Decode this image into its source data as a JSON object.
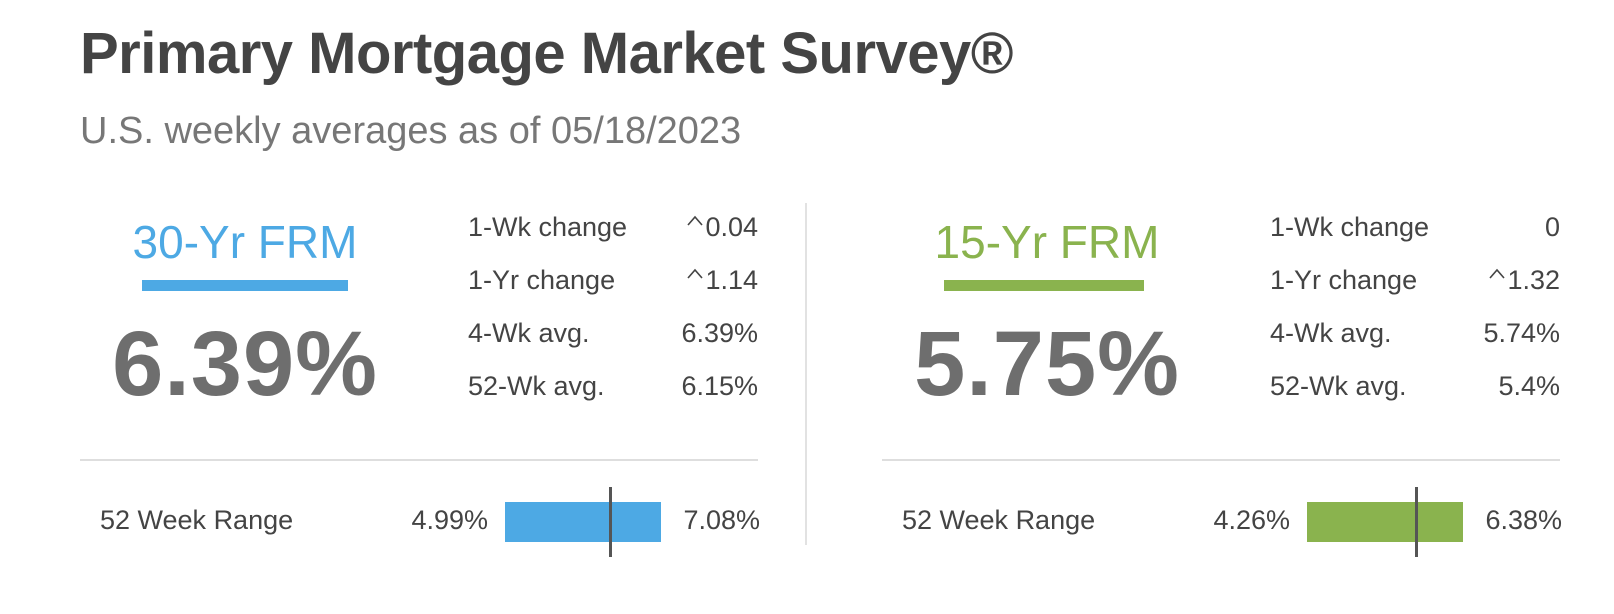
{
  "header": {
    "title": "Primary Mortgage Market Survey®",
    "subtitle": "U.S. weekly averages as of 05/18/2023"
  },
  "products": [
    {
      "name": "30-Yr FRM",
      "color": "#4DA9E4",
      "rate": "6.39%",
      "stats": [
        {
          "label": "1-Wk change",
          "value": "0.04",
          "direction": "up"
        },
        {
          "label": "1-Yr change",
          "value": "1.14",
          "direction": "up"
        },
        {
          "label": "4-Wk avg.",
          "value": "6.39%",
          "direction": "none"
        },
        {
          "label": "52-Wk avg.",
          "value": "6.15%",
          "direction": "none"
        }
      ],
      "range": {
        "label": "52 Week Range",
        "min": "4.99%",
        "max": "7.08%",
        "current_fraction": 0.67
      }
    },
    {
      "name": "15-Yr FRM",
      "color": "#8AB34E",
      "rate": "5.75%",
      "stats": [
        {
          "label": "1-Wk change",
          "value": "0",
          "direction": "none"
        },
        {
          "label": "1-Yr change",
          "value": "1.32",
          "direction": "up"
        },
        {
          "label": "4-Wk avg.",
          "value": "5.74%",
          "direction": "none"
        },
        {
          "label": "52-Wk avg.",
          "value": "5.4%",
          "direction": "none"
        }
      ],
      "range": {
        "label": "52 Week Range",
        "min": "4.26%",
        "max": "6.38%",
        "current_fraction": 0.7
      }
    }
  ],
  "icons": {
    "increase": "caret-up-icon"
  }
}
